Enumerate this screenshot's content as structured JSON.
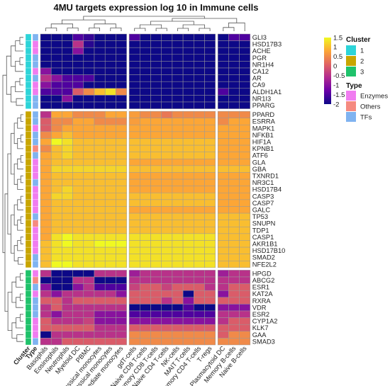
{
  "chart_data": {
    "type": "heatmap",
    "title": "4MU targets expression log 10 in Immune cells",
    "columns": [
      "Basophils",
      "Eosinophils",
      "Neutrophils",
      "Myeloid DC",
      "PBMC",
      "Non-classical monocytes",
      "Classical monocytes",
      "Intermediate monocytes",
      "gdT-cells",
      "Naive CD8 T-cells",
      "Memory CD8 T-cells",
      "Naive CD4 T-cells",
      "NK-cells",
      "MAIT T-cells",
      "Memory CD4 T-cells",
      "T-regs",
      "Plasmacytoid DC",
      "Memory B-cells",
      "Naive B-cells"
    ],
    "rows": [
      "GLI3",
      "HSD17B3",
      "ACHE",
      "PGR",
      "NR1H4",
      "CA12",
      "AR",
      "CA9",
      "ALDH1A1",
      "NR1I3",
      "PPARG",
      "PPARD",
      "ESRRA",
      "MAPK1",
      "NFKB1",
      "HIF1A",
      "KPNB1",
      "ATF6",
      "GLA",
      "GBA",
      "TXNRD1",
      "NR3C1",
      "HSD17B4",
      "CASP3",
      "CASP7",
      "GALC",
      "TP53",
      "SNUPN",
      "TDP1",
      "CASP1",
      "AKR1B1",
      "HSD17B10",
      "SMAD2",
      "NFE2L2",
      "HPGD",
      "ABCG2",
      "ESR1",
      "KAT2A",
      "RXRA",
      "VDR",
      "ESR2",
      "CYP1A2",
      "KLK7",
      "GAA",
      "SMAD3"
    ],
    "row_cluster": [
      "1",
      "1",
      "1",
      "1",
      "1",
      "1",
      "1",
      "1",
      "1",
      "1",
      "1",
      "2",
      "2",
      "2",
      "2",
      "2",
      "2",
      "2",
      "2",
      "2",
      "2",
      "2",
      "2",
      "2",
      "2",
      "2",
      "2",
      "2",
      "2",
      "2",
      "2",
      "2",
      "2",
      "2",
      "3",
      "3",
      "3",
      "3",
      "3",
      "3",
      "3",
      "3",
      "3",
      "3",
      "3"
    ],
    "row_type": [
      "TFs",
      "Enzymes",
      "Enzymes",
      "TFs",
      "TFs",
      "Enzymes",
      "TFs",
      "Enzymes",
      "Enzymes",
      "TFs",
      "TFs",
      "TFs",
      "TFs",
      "Enzymes",
      "TFs",
      "TFs",
      "Others",
      "TFs",
      "Enzymes",
      "Enzymes",
      "Enzymes",
      "TFs",
      "Enzymes",
      "Enzymes",
      "Enzymes",
      "Enzymes",
      "TFs",
      "Others",
      "Enzymes",
      "Enzymes",
      "Enzymes",
      "Enzymes",
      "TFs",
      "TFs",
      "Enzymes",
      "Others",
      "TFs",
      "Enzymes",
      "TFs",
      "TFs",
      "TFs",
      "Enzymes",
      "Enzymes",
      "Enzymes",
      "TFs"
    ],
    "values": [
      [
        -2,
        -2,
        -2,
        -1.5,
        -1.7,
        -2,
        -2,
        -2,
        -1.5,
        -2,
        -2,
        -2,
        -2,
        -2,
        -2,
        -2,
        -2,
        -1.5,
        -1.5
      ],
      [
        -2,
        -2,
        -2,
        -0.5,
        -1.8,
        -2,
        -2,
        -2,
        -2,
        -2,
        -2,
        -2,
        -2,
        -2,
        -2,
        -2,
        -2,
        -2,
        -2
      ],
      [
        -2,
        -2,
        -2,
        -1.0,
        -2,
        -2,
        -2,
        -2,
        -2,
        -2,
        -2,
        -2,
        -2,
        -2,
        -2,
        -2,
        -2,
        -2,
        -2
      ],
      [
        -2,
        -2,
        -2,
        -2,
        -2,
        -2,
        -2,
        -2,
        -2,
        -2,
        -2,
        -2,
        -2,
        -2,
        -2,
        -2,
        -2,
        -2,
        -2
      ],
      [
        -2,
        -2,
        -2,
        -2,
        -2,
        -2,
        -2,
        -2,
        -2,
        -2,
        -2,
        -2,
        -2,
        -2,
        -2,
        -2,
        -2,
        -2,
        -2
      ],
      [
        -1.0,
        -2,
        -2,
        -2,
        -2,
        -2,
        -2,
        -2,
        -2,
        -2,
        -2,
        -2,
        -2,
        -2,
        -2,
        -2,
        -2,
        -2,
        -2
      ],
      [
        -0.5,
        -1.0,
        -1.5,
        -1.5,
        -1.5,
        -2,
        -2,
        -2,
        -2,
        -2,
        -2,
        -2,
        -2,
        -2,
        -2,
        -2,
        -2,
        -2,
        -2
      ],
      [
        -1.0,
        -1.5,
        -1.5,
        -1.5,
        -2,
        -2,
        -2,
        -2,
        -2,
        -2,
        -2,
        -2,
        -2,
        -2,
        -2,
        -2,
        -2,
        -2,
        -2
      ],
      [
        -1.5,
        -1.5,
        -1.5,
        0.0,
        0.5,
        1.0,
        1.3,
        0.5,
        -2,
        -2,
        -2,
        -2,
        -2,
        -2,
        -2,
        -2,
        -1.5,
        -2,
        -2
      ],
      [
        -2,
        -2,
        -1.0,
        -2,
        -2,
        -2,
        -2,
        -2,
        -2,
        -2,
        -2,
        -2,
        -2,
        -2,
        -2,
        -2,
        -2,
        -2,
        -2
      ],
      [
        -2,
        -2,
        -2,
        -2,
        -2,
        -2,
        -2,
        -2,
        -2,
        -2,
        -2,
        -2,
        -2,
        -2,
        -2,
        -2,
        -2,
        -2,
        -2
      ],
      [
        -0.5,
        0.8,
        0.8,
        0.5,
        0.5,
        0.5,
        0.8,
        0.8,
        0.7,
        0.5,
        0.5,
        0.3,
        0.5,
        0.5,
        0.5,
        0.5,
        0.5,
        0.5,
        0.5
      ],
      [
        0.0,
        0.5,
        0.5,
        0.8,
        0.8,
        0.5,
        0.5,
        0.5,
        0.7,
        0.8,
        0.8,
        0.8,
        0.8,
        0.8,
        0.8,
        0.8,
        0.5,
        0.8,
        0.8
      ],
      [
        0.0,
        0.5,
        0.8,
        0.8,
        0.8,
        0.8,
        0.8,
        0.8,
        0.8,
        0.8,
        0.8,
        0.8,
        0.8,
        0.8,
        0.8,
        0.8,
        0.8,
        0.8,
        0.8
      ],
      [
        0.5,
        0.8,
        1.0,
        0.8,
        0.8,
        0.8,
        0.8,
        0.8,
        0.8,
        0.8,
        0.8,
        0.8,
        0.8,
        0.8,
        0.8,
        0.8,
        0.8,
        0.8,
        0.8
      ],
      [
        0.8,
        1.5,
        1.3,
        1.0,
        1.0,
        1.0,
        1.0,
        1.0,
        1.0,
        1.0,
        1.0,
        1.0,
        1.0,
        1.0,
        1.0,
        1.0,
        0.8,
        0.8,
        0.8
      ],
      [
        0.5,
        1.0,
        1.2,
        1.0,
        1.0,
        1.0,
        1.0,
        1.0,
        1.0,
        1.0,
        1.0,
        1.0,
        1.0,
        1.0,
        1.0,
        1.0,
        0.8,
        0.8,
        0.8
      ],
      [
        0.8,
        1.0,
        1.2,
        1.0,
        1.0,
        1.0,
        1.0,
        1.0,
        1.0,
        1.0,
        1.0,
        1.0,
        1.0,
        1.0,
        1.0,
        1.0,
        0.8,
        0.8,
        0.8
      ],
      [
        0.8,
        1.0,
        1.0,
        1.0,
        1.0,
        1.0,
        1.0,
        1.0,
        0.8,
        0.8,
        0.8,
        0.8,
        0.8,
        0.8,
        0.8,
        0.8,
        0.8,
        0.8,
        0.8
      ],
      [
        0.8,
        1.2,
        1.2,
        1.2,
        1.2,
        1.2,
        1.2,
        1.2,
        1.0,
        1.0,
        1.0,
        1.0,
        1.0,
        1.0,
        1.0,
        1.0,
        1.0,
        1.0,
        1.0
      ],
      [
        0.8,
        1.0,
        1.0,
        1.0,
        1.0,
        1.0,
        1.0,
        1.0,
        0.8,
        0.8,
        0.8,
        0.8,
        0.8,
        0.8,
        0.8,
        0.8,
        0.8,
        0.8,
        0.8
      ],
      [
        0.8,
        1.0,
        1.0,
        1.0,
        1.0,
        1.0,
        1.0,
        1.0,
        0.8,
        0.8,
        0.8,
        0.8,
        0.8,
        0.8,
        0.8,
        0.8,
        0.8,
        0.8,
        0.8
      ],
      [
        0.8,
        1.0,
        1.2,
        1.0,
        1.0,
        1.0,
        1.0,
        1.0,
        0.8,
        0.8,
        0.8,
        0.8,
        0.8,
        0.8,
        0.8,
        0.8,
        0.8,
        0.8,
        0.8
      ],
      [
        0.8,
        1.2,
        1.2,
        1.0,
        1.0,
        1.0,
        1.0,
        1.0,
        1.0,
        1.0,
        1.0,
        1.0,
        1.0,
        1.0,
        1.0,
        1.0,
        0.8,
        0.8,
        0.8
      ],
      [
        0.8,
        1.0,
        1.0,
        1.0,
        1.0,
        1.0,
        1.0,
        1.0,
        1.0,
        1.0,
        1.0,
        1.0,
        1.0,
        1.0,
        1.0,
        1.0,
        0.8,
        0.8,
        0.8
      ],
      [
        0.8,
        1.0,
        1.0,
        1.0,
        1.0,
        1.0,
        1.0,
        1.0,
        0.8,
        0.8,
        0.8,
        0.8,
        0.8,
        0.8,
        0.8,
        0.8,
        0.8,
        0.8,
        0.8
      ],
      [
        0.8,
        1.0,
        1.0,
        1.0,
        1.0,
        1.0,
        1.0,
        1.0,
        1.0,
        1.0,
        1.0,
        1.0,
        1.0,
        1.0,
        1.0,
        1.0,
        1.0,
        1.0,
        1.0
      ],
      [
        0.8,
        1.0,
        1.0,
        1.0,
        1.0,
        1.0,
        1.0,
        1.0,
        1.0,
        1.0,
        1.0,
        1.0,
        1.0,
        1.0,
        1.0,
        1.0,
        1.0,
        1.0,
        1.0
      ],
      [
        0.8,
        1.0,
        1.0,
        1.0,
        1.0,
        1.0,
        1.0,
        1.0,
        1.0,
        1.0,
        1.0,
        1.0,
        1.0,
        1.0,
        1.0,
        1.0,
        1.0,
        1.0,
        1.0
      ],
      [
        0.8,
        1.3,
        1.5,
        1.3,
        1.3,
        1.3,
        1.3,
        1.3,
        1.3,
        1.3,
        1.3,
        1.3,
        1.3,
        1.3,
        1.3,
        1.3,
        1.0,
        1.0,
        1.0
      ],
      [
        1.0,
        1.3,
        1.5,
        1.3,
        1.3,
        1.5,
        1.5,
        1.5,
        1.3,
        1.3,
        1.3,
        1.3,
        1.3,
        1.3,
        1.3,
        1.3,
        1.0,
        1.0,
        1.0
      ],
      [
        1.0,
        1.3,
        1.3,
        1.3,
        1.3,
        1.3,
        1.3,
        1.3,
        1.3,
        1.3,
        1.3,
        1.3,
        1.3,
        1.3,
        1.3,
        1.3,
        1.0,
        1.0,
        1.0
      ],
      [
        1.0,
        1.3,
        1.3,
        1.3,
        1.3,
        1.3,
        1.3,
        1.3,
        1.3,
        1.3,
        1.3,
        1.3,
        1.3,
        1.3,
        1.3,
        1.3,
        1.0,
        1.0,
        1.0
      ],
      [
        1.0,
        1.5,
        1.5,
        1.3,
        1.3,
        1.3,
        1.3,
        1.3,
        1.3,
        1.3,
        1.3,
        1.3,
        1.3,
        1.3,
        1.3,
        1.3,
        1.0,
        1.0,
        1.0
      ],
      [
        -0.5,
        -2,
        -2,
        -2,
        -2,
        -0.5,
        -0.5,
        -0.5,
        -0.8,
        -0.5,
        -0.5,
        -0.5,
        -0.5,
        -0.5,
        -0.5,
        -0.5,
        -0.8,
        -0.5,
        -0.5
      ],
      [
        -2,
        -2,
        -2,
        -0.5,
        -0.5,
        -2,
        -2,
        -2,
        -0.5,
        -0.5,
        -0.5,
        -0.5,
        -0.5,
        -0.5,
        -0.5,
        -0.5,
        -0.5,
        -0.5,
        -0.5
      ],
      [
        -1.0,
        -2,
        -2,
        -1.0,
        -0.5,
        -1.5,
        -1.5,
        -1.5,
        -0.3,
        0.0,
        0.0,
        -0.3,
        0.0,
        0.0,
        0.0,
        -0.5,
        -0.5,
        0.0,
        0.0
      ],
      [
        -0.5,
        -1.0,
        -0.5,
        -0.5,
        -0.5,
        -0.5,
        -0.5,
        -1.0,
        0.0,
        0.0,
        0.0,
        0.0,
        0.0,
        -2,
        0.0,
        0.0,
        -1.0,
        0.0,
        0.0
      ],
      [
        0.0,
        0.0,
        -0.5,
        0.0,
        0.0,
        0.0,
        0.0,
        0.0,
        0.0,
        0.0,
        0.0,
        -0.5,
        0.0,
        -1.0,
        0.0,
        0.0,
        0.0,
        0.0,
        0.0
      ],
      [
        -0.5,
        0.0,
        -0.5,
        -0.5,
        -0.5,
        -0.5,
        -0.5,
        -0.5,
        -2,
        -2,
        -2,
        -2,
        -2,
        -1.5,
        -2,
        -2,
        -1.0,
        -1.0,
        -1.0
      ],
      [
        -0.5,
        -1.0,
        -0.5,
        -0.5,
        -0.5,
        -1.0,
        -1.0,
        -1.0,
        -1.5,
        -1.5,
        -1.5,
        -1.5,
        -1.5,
        -1.5,
        -1.5,
        -1.5,
        -0.5,
        -0.5,
        -0.5
      ],
      [
        0.0,
        -0.5,
        -0.5,
        -0.5,
        -0.3,
        -1.0,
        -1.0,
        -1.0,
        -1.0,
        -1.0,
        -1.0,
        -1.0,
        -1.0,
        -1.0,
        -1.0,
        -1.0,
        -0.5,
        0.0,
        0.0
      ],
      [
        0.0,
        0.0,
        0.0,
        0.0,
        0.0,
        -0.5,
        -0.5,
        -0.5,
        0.0,
        0.0,
        0.0,
        0.0,
        0.0,
        0.0,
        0.0,
        0.0,
        0.0,
        0.0,
        0.0
      ],
      [
        -2,
        -0.5,
        -0.5,
        -0.5,
        -0.5,
        -0.5,
        -0.5,
        -0.5,
        0.5,
        0.5,
        0.5,
        0.5,
        0.5,
        0.5,
        0.5,
        0.5,
        0.0,
        0.5,
        0.5
      ],
      [
        -0.5,
        -0.5,
        0.0,
        0.0,
        0.0,
        0.0,
        0.0,
        0.0,
        0.5,
        0.5,
        0.5,
        0.5,
        0.5,
        0.5,
        0.5,
        0.5,
        0.5,
        0.5,
        0.5
      ]
    ],
    "color_scale": {
      "min": -2,
      "max": 1.5,
      "ticks": [
        "1.5",
        "1",
        "0.5",
        "0",
        "-0.5",
        "-1",
        "-1.5",
        "-2"
      ],
      "stops": [
        "#0d0887",
        "#6a00a8",
        "#b12a90",
        "#e16462",
        "#fca636",
        "#f0f921"
      ]
    },
    "annotation_titles": {
      "cluster": "Cluster",
      "type": "Type"
    },
    "clusters": [
      {
        "label": "1",
        "color": "#2dd4d8"
      },
      {
        "label": "2",
        "color": "#c8a500"
      },
      {
        "label": "3",
        "color": "#1fc26b"
      }
    ],
    "types": [
      {
        "label": "Enzymes",
        "color": "#f07cf0"
      },
      {
        "label": "Others",
        "color": "#f58a80"
      },
      {
        "label": "TFs",
        "color": "#7fb3f0"
      }
    ],
    "row_splits_after": [
      11,
      34
    ],
    "col_splits_after": [
      8,
      16
    ]
  }
}
